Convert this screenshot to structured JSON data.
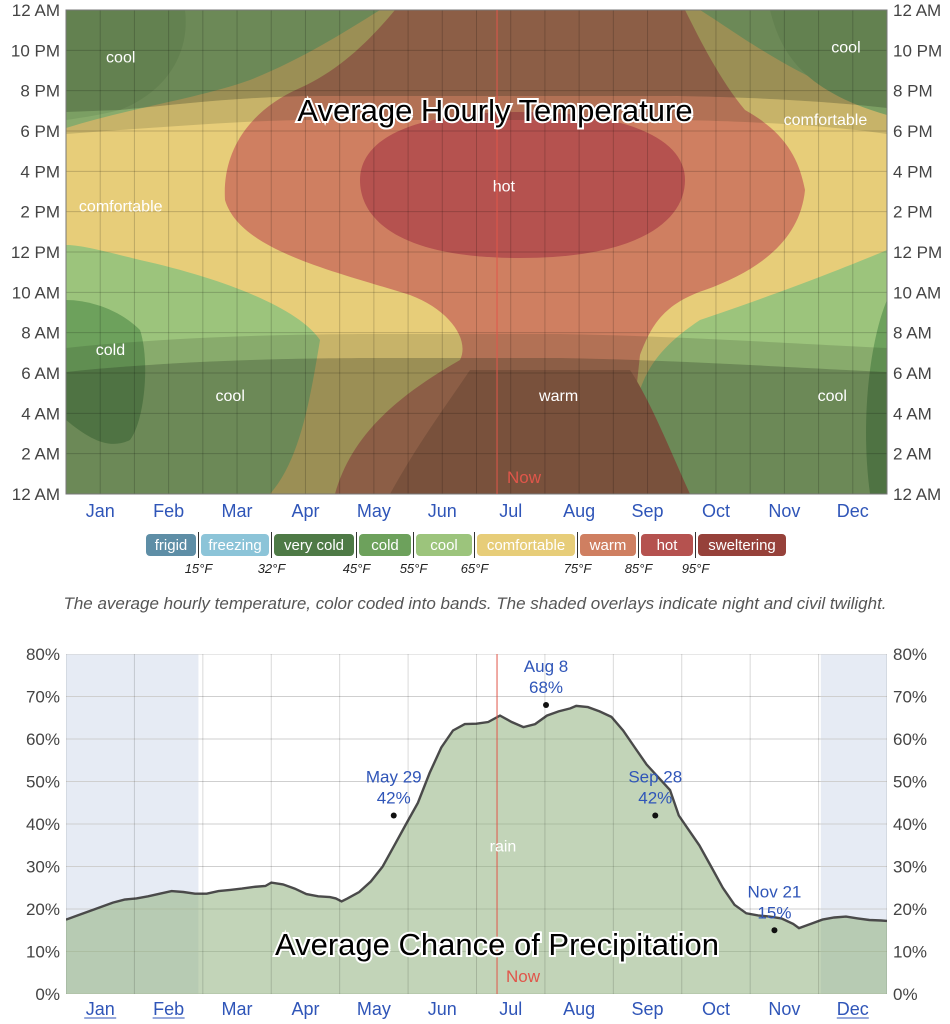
{
  "chart_data": [
    {
      "type": "heatmap",
      "title": "Average Hourly Temperature",
      "caption": "The average hourly temperature, color coded into bands. The shaded overlays indicate night and civil twilight.",
      "months": [
        "Jan",
        "Feb",
        "Mar",
        "Apr",
        "May",
        "Jun",
        "Jul",
        "Aug",
        "Sep",
        "Oct",
        "Nov",
        "Dec"
      ],
      "y_ticks": [
        "12 AM",
        "10 PM",
        "8 PM",
        "6 PM",
        "4 PM",
        "2 PM",
        "12 PM",
        "10 AM",
        "8 AM",
        "6 AM",
        "4 AM",
        "2 AM",
        "12 AM"
      ],
      "now_label": "Now",
      "now_month": 6.3,
      "bands": [
        {
          "label": "frigid",
          "color": "#5e8ea6",
          "threshold": "15°F"
        },
        {
          "label": "freezing",
          "color": "#8cc4d8",
          "threshold": "32°F"
        },
        {
          "label": "very cold",
          "color": "#4e7a46",
          "threshold": "45°F"
        },
        {
          "label": "cold",
          "color": "#6da15c",
          "threshold": "55°F"
        },
        {
          "label": "cool",
          "color": "#9cc47c",
          "threshold": "65°F"
        },
        {
          "label": "comfortable",
          "color": "#e7cd79",
          "threshold": "75°F"
        },
        {
          "label": "warm",
          "color": "#cf7f61",
          "threshold": "85°F"
        },
        {
          "label": "hot",
          "color": "#b5524f",
          "threshold": "95°F"
        },
        {
          "label": "sweltering",
          "color": "#96413a",
          "threshold": ""
        }
      ],
      "region_labels": [
        {
          "text": "cool",
          "month": 0.8,
          "hour": 21.7
        },
        {
          "text": "cool",
          "month": 11.4,
          "hour": 22.2
        },
        {
          "text": "comfortable",
          "month": 11.1,
          "hour": 18.6
        },
        {
          "text": "comfortable",
          "month": 0.8,
          "hour": 14.3
        },
        {
          "text": "hot",
          "month": 6.4,
          "hour": 15.3
        },
        {
          "text": "cold",
          "month": 0.65,
          "hour": 7.2
        },
        {
          "text": "cool",
          "month": 2.4,
          "hour": 4.9
        },
        {
          "text": "warm",
          "month": 7.2,
          "hour": 4.9
        },
        {
          "text": "cool",
          "month": 11.2,
          "hour": 4.9
        }
      ]
    },
    {
      "type": "area",
      "title": "Average Chance of Precipitation",
      "series": [
        {
          "name": "rain",
          "color": "#8fb07d"
        }
      ],
      "y_ticks": [
        "80%",
        "70%",
        "60%",
        "50%",
        "40%",
        "30%",
        "20%",
        "10%",
        "0%"
      ],
      "ylim": [
        0,
        80
      ],
      "months": [
        "Jan",
        "Feb",
        "Mar",
        "Apr",
        "May",
        "Jun",
        "Jul",
        "Aug",
        "Sep",
        "Oct",
        "Nov",
        "Dec"
      ],
      "now_label": "Now",
      "now_month": 6.3,
      "points": [
        [
          0.0,
          17.5
        ],
        [
          0.2,
          18.5
        ],
        [
          0.4,
          19.5
        ],
        [
          0.6,
          20.5
        ],
        [
          0.8,
          21.5
        ],
        [
          1.0,
          22.2
        ],
        [
          1.2,
          22.5
        ],
        [
          1.4,
          23
        ],
        [
          1.6,
          23.6
        ],
        [
          1.8,
          24.2
        ],
        [
          2.0,
          24
        ],
        [
          2.2,
          23.6
        ],
        [
          2.4,
          23.6
        ],
        [
          2.6,
          24.2
        ],
        [
          2.8,
          24.5
        ],
        [
          3.0,
          24.8
        ],
        [
          3.2,
          25.2
        ],
        [
          3.4,
          25.4
        ],
        [
          3.5,
          26.2
        ],
        [
          3.7,
          25.8
        ],
        [
          3.9,
          24.8
        ],
        [
          4.1,
          23.5
        ],
        [
          4.3,
          23
        ],
        [
          4.5,
          22.8
        ],
        [
          4.6,
          22.5
        ],
        [
          4.7,
          21.8
        ],
        [
          4.8,
          22.5
        ],
        [
          5.0,
          24
        ],
        [
          5.2,
          26.5
        ],
        [
          5.4,
          30
        ],
        [
          5.6,
          35
        ],
        [
          5.8,
          40
        ],
        [
          6.0,
          45
        ],
        [
          6.2,
          52
        ],
        [
          6.4,
          58
        ],
        [
          6.6,
          62
        ],
        [
          6.8,
          63.5
        ],
        [
          7.0,
          63.6
        ],
        [
          7.2,
          64
        ],
        [
          7.4,
          65.5
        ],
        [
          7.6,
          64
        ],
        [
          7.8,
          62.8
        ],
        [
          8.0,
          63.5
        ],
        [
          8.2,
          65.5
        ],
        [
          8.4,
          66.5
        ],
        [
          8.6,
          67.2
        ],
        [
          8.7,
          67.8
        ],
        [
          8.9,
          67.5
        ],
        [
          9.1,
          66.5
        ],
        [
          9.3,
          65.2
        ],
        [
          9.5,
          62
        ],
        [
          9.7,
          58
        ],
        [
          9.9,
          54
        ],
        [
          10.1,
          51
        ],
        [
          10.3,
          48
        ],
        [
          10.45,
          42
        ],
        [
          10.6,
          39
        ],
        [
          10.8,
          35
        ],
        [
          11.0,
          30
        ],
        [
          11.2,
          25
        ],
        [
          11.4,
          21
        ],
        [
          11.6,
          19
        ],
        [
          11.8,
          18.5
        ],
        [
          12.0,
          18.2
        ],
        [
          12.2,
          17.8
        ],
        [
          12.4,
          16.5
        ],
        [
          12.5,
          15.5
        ],
        [
          12.7,
          16.5
        ],
        [
          12.9,
          17.5
        ],
        [
          13.1,
          18
        ],
        [
          13.3,
          18.2
        ],
        [
          13.5,
          17.8
        ],
        [
          13.7,
          17.4
        ],
        [
          13.9,
          17.3
        ],
        [
          14.0,
          17.2
        ]
      ],
      "annotations": [
        {
          "date": "May 29",
          "value": "42%",
          "month": 4.95,
          "pct": 42
        },
        {
          "date": "Aug 8",
          "value": "68%",
          "month": 7.25,
          "pct": 68
        },
        {
          "date": "Sep 28",
          "value": "42%",
          "month": 8.9,
          "pct": 42
        },
        {
          "date": "Nov 21",
          "value": "15%",
          "month": 10.7,
          "pct": 15
        }
      ],
      "region_label": "rain"
    }
  ]
}
